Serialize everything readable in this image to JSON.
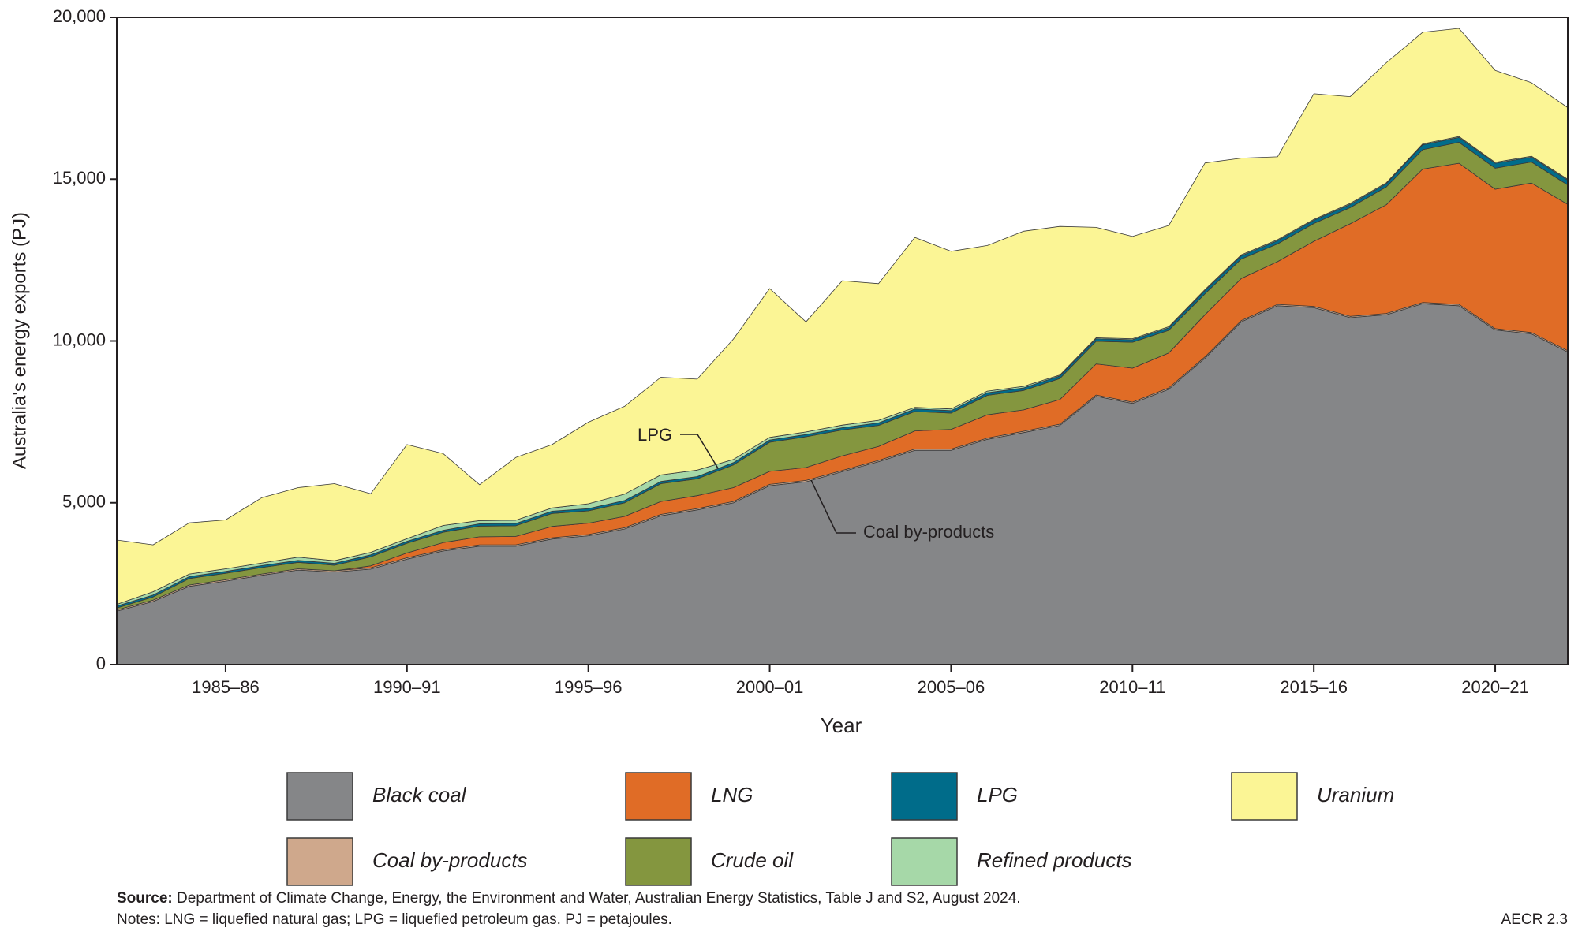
{
  "chart_data": {
    "type": "stacked-area",
    "x_label": "Year",
    "y_label": "Australia's energy exports (PJ)",
    "categories": [
      null,
      null,
      null,
      "1985–86",
      null,
      null,
      null,
      null,
      "1990–91",
      null,
      null,
      null,
      null,
      "1995–96",
      null,
      null,
      null,
      null,
      "2000–01",
      null,
      null,
      null,
      null,
      "2005–06",
      null,
      null,
      null,
      null,
      "2010–11",
      null,
      null,
      null,
      null,
      "2015–16",
      null,
      null,
      null,
      null,
      "2020–21",
      null,
      null
    ],
    "series": [
      {
        "name": "Black coal",
        "color": "#858688",
        "values": [
          1650,
          1950,
          2420,
          2580,
          2760,
          2920,
          2860,
          2950,
          3260,
          3510,
          3660,
          3660,
          3880,
          3980,
          4190,
          4600,
          4780,
          5000,
          5530,
          5650,
          5960,
          6270,
          6620,
          6620,
          6960,
          7170,
          7390,
          8290,
          8070,
          8510,
          9470,
          10590,
          11090,
          11030,
          10720,
          10810,
          11150,
          11090,
          10340,
          10220,
          9660
        ]
      },
      {
        "name": "Coal by-products",
        "color": "#cfa88c",
        "values": [
          40,
          40,
          40,
          40,
          40,
          40,
          40,
          40,
          40,
          40,
          40,
          40,
          40,
          40,
          40,
          40,
          40,
          40,
          40,
          40,
          40,
          40,
          40,
          40,
          40,
          40,
          40,
          40,
          40,
          40,
          40,
          40,
          40,
          40,
          40,
          40,
          40,
          40,
          40,
          40,
          40
        ]
      },
      {
        "name": "LNG",
        "color": "#e06c26",
        "values": [
          0,
          0,
          0,
          0,
          0,
          0,
          0,
          60,
          150,
          220,
          250,
          260,
          350,
          350,
          350,
          400,
          400,
          430,
          400,
          400,
          450,
          430,
          560,
          610,
          720,
          660,
          760,
          960,
          1050,
          1080,
          1300,
          1300,
          1320,
          2010,
          2860,
          3360,
          4120,
          4360,
          4310,
          4620,
          4520
        ]
      },
      {
        "name": "Crude oil",
        "color": "#84963f",
        "values": [
          60,
          100,
          200,
          200,
          200,
          200,
          170,
          280,
          300,
          320,
          330,
          330,
          400,
          380,
          420,
          550,
          520,
          700,
          900,
          950,
          800,
          650,
          600,
          500,
          600,
          600,
          650,
          700,
          800,
          700,
          650,
          600,
          550,
          550,
          500,
          550,
          600,
          650,
          650,
          650,
          600
        ]
      },
      {
        "name": "LPG",
        "color": "#006c8a",
        "values": [
          60,
          60,
          60,
          60,
          60,
          60,
          60,
          60,
          60,
          60,
          70,
          70,
          70,
          70,
          70,
          70,
          70,
          70,
          70,
          70,
          70,
          80,
          80,
          80,
          80,
          80,
          80,
          80,
          80,
          80,
          100,
          100,
          100,
          100,
          100,
          100,
          150,
          150,
          150,
          150,
          150
        ]
      },
      {
        "name": "Refined products",
        "color": "#a6d8a8",
        "values": [
          50,
          100,
          80,
          80,
          80,
          100,
          80,
          80,
          80,
          150,
          100,
          100,
          100,
          150,
          200,
          200,
          200,
          100,
          80,
          80,
          80,
          80,
          50,
          50,
          50,
          50,
          30,
          30,
          30,
          30,
          30,
          30,
          30,
          30,
          30,
          30,
          30,
          30,
          30,
          30,
          30
        ]
      },
      {
        "name": "Uranium",
        "color": "#fbf595",
        "values": [
          1990,
          1450,
          1580,
          1510,
          2020,
          2150,
          2380,
          1810,
          2910,
          2220,
          1110,
          1940,
          1960,
          2520,
          2710,
          3020,
          2810,
          3720,
          4600,
          3400,
          4460,
          4220,
          5250,
          4870,
          4500,
          4790,
          4590,
          3410,
          3160,
          3130,
          3910,
          2990,
          2560,
          3880,
          3300,
          3710,
          3450,
          3340,
          2840,
          2270,
          2210
        ]
      }
    ],
    "ylim": [
      0,
      20000
    ],
    "yticks": [
      0,
      {
        "value": 5000,
        "label": "5,000"
      },
      {
        "value": 10000,
        "label": "10,000"
      },
      {
        "value": 15000,
        "label": "15,000"
      },
      {
        "value": 20000,
        "label": "20,000"
      }
    ],
    "annotations": [
      "LPG",
      "Coal by-products"
    ],
    "source_label": "Source:",
    "source": "Department of Climate Change, Energy, the Environment and Water, Australian Energy Statistics, Table J and S2, August 2024.",
    "notes": "Notes: LNG = liquefied natural gas; LPG = liquefied petroleum gas. PJ = petajoules.",
    "figure_id": "AECR 2.3"
  }
}
